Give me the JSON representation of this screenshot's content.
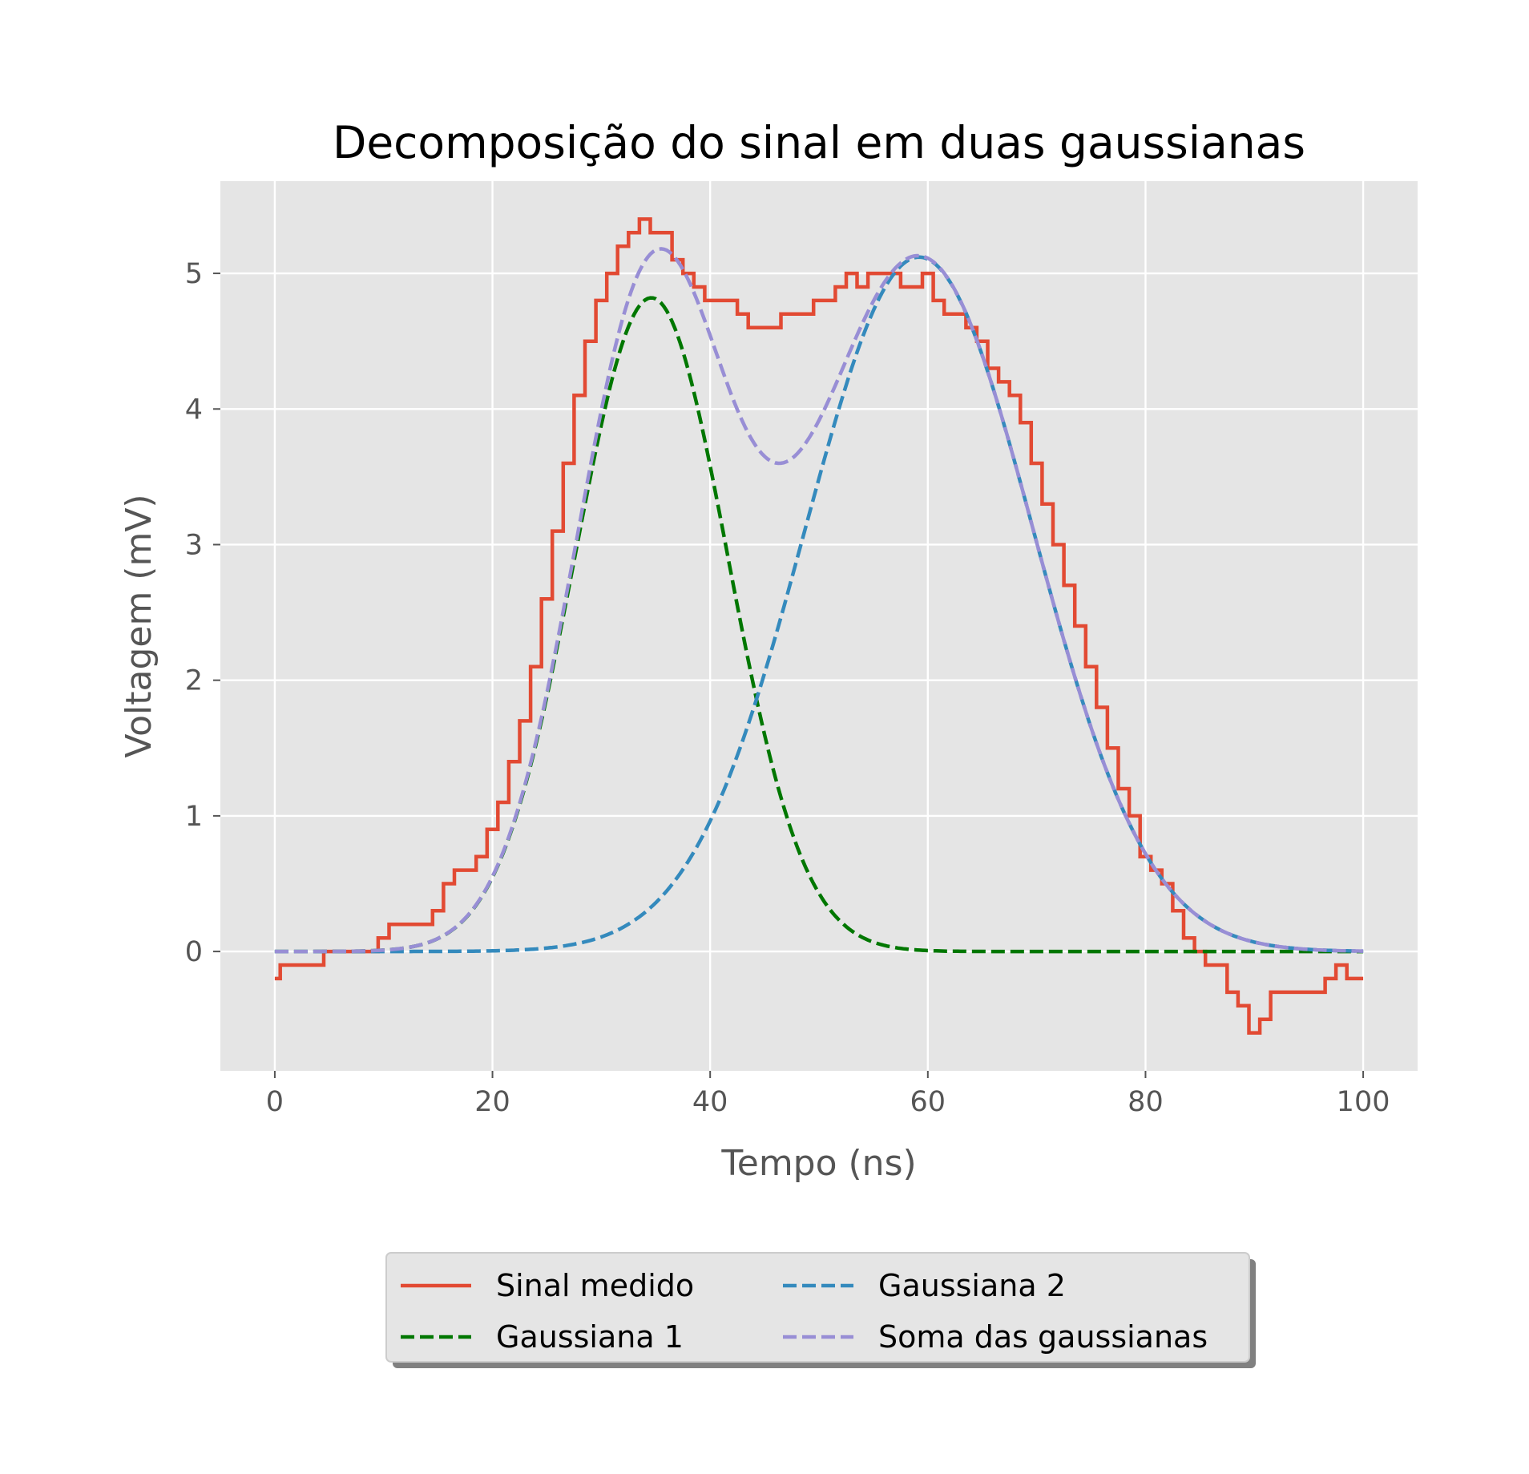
{
  "chart_data": {
    "type": "line",
    "title": "Decomposição do sinal em duas gaussianas",
    "xlabel": "Tempo (ns)",
    "ylabel": "Voltagem (mV)",
    "xlim": [
      -5,
      105
    ],
    "ylim": [
      -0.88,
      5.68
    ],
    "xticks": [
      0,
      20,
      40,
      60,
      80,
      100
    ],
    "yticks": [
      0,
      1,
      2,
      3,
      4,
      5
    ],
    "grid": true,
    "legend_position": "bottom-center",
    "background_color": "#e5e5e5",
    "series": [
      {
        "name": "Sinal medido",
        "style": "solid-step",
        "color": "#e24a33",
        "x": [
          0,
          1,
          2,
          3,
          4,
          5,
          6,
          7,
          8,
          9,
          10,
          11,
          12,
          13,
          14,
          15,
          16,
          17,
          18,
          19,
          20,
          21,
          22,
          23,
          24,
          25,
          26,
          27,
          28,
          29,
          30,
          31,
          32,
          33,
          34,
          35,
          36,
          37,
          38,
          39,
          40,
          41,
          42,
          43,
          44,
          45,
          46,
          47,
          48,
          49,
          50,
          51,
          52,
          53,
          54,
          55,
          56,
          57,
          58,
          59,
          60,
          61,
          62,
          63,
          64,
          65,
          66,
          67,
          68,
          69,
          70,
          71,
          72,
          73,
          74,
          75,
          76,
          77,
          78,
          79,
          80,
          81,
          82,
          83,
          84,
          85,
          86,
          87,
          88,
          89,
          90,
          91,
          92,
          93,
          94,
          95,
          96,
          97,
          98,
          99,
          100
        ],
        "y": [
          -0.2,
          -0.1,
          -0.1,
          -0.1,
          -0.1,
          0.0,
          0.0,
          0.0,
          0.0,
          0.0,
          0.1,
          0.2,
          0.2,
          0.2,
          0.2,
          0.3,
          0.5,
          0.6,
          0.6,
          0.7,
          0.9,
          1.1,
          1.4,
          1.7,
          2.1,
          2.6,
          3.1,
          3.6,
          4.1,
          4.5,
          4.8,
          5.0,
          5.2,
          5.3,
          5.4,
          5.3,
          5.3,
          5.1,
          5.0,
          4.9,
          4.8,
          4.8,
          4.8,
          4.7,
          4.6,
          4.6,
          4.6,
          4.7,
          4.7,
          4.7,
          4.8,
          4.8,
          4.9,
          5.0,
          4.9,
          5.0,
          5.0,
          5.0,
          4.9,
          4.9,
          5.0,
          4.8,
          4.7,
          4.7,
          4.6,
          4.5,
          4.3,
          4.2,
          4.1,
          3.9,
          3.6,
          3.3,
          3.0,
          2.7,
          2.4,
          2.1,
          1.8,
          1.5,
          1.2,
          1.0,
          0.7,
          0.6,
          0.5,
          0.3,
          0.1,
          0.0,
          -0.1,
          -0.1,
          -0.3,
          -0.4,
          -0.6,
          -0.5,
          -0.3,
          -0.3,
          -0.3,
          -0.3,
          -0.3,
          -0.2,
          -0.1,
          -0.2,
          -0.2
        ]
      },
      {
        "name": "Gaussiana 1",
        "style": "dashed",
        "color": "#007700",
        "amplitude": 4.82,
        "mean": 34.6,
        "sigma": 7.0
      },
      {
        "name": "Gaussiana 2",
        "style": "dashed",
        "color": "#348abd",
        "amplitude": 5.12,
        "mean": 59.2,
        "sigma": 10.5
      },
      {
        "name": "Soma das gaussianas",
        "style": "dashed",
        "color": "#988ed5"
      }
    ]
  }
}
